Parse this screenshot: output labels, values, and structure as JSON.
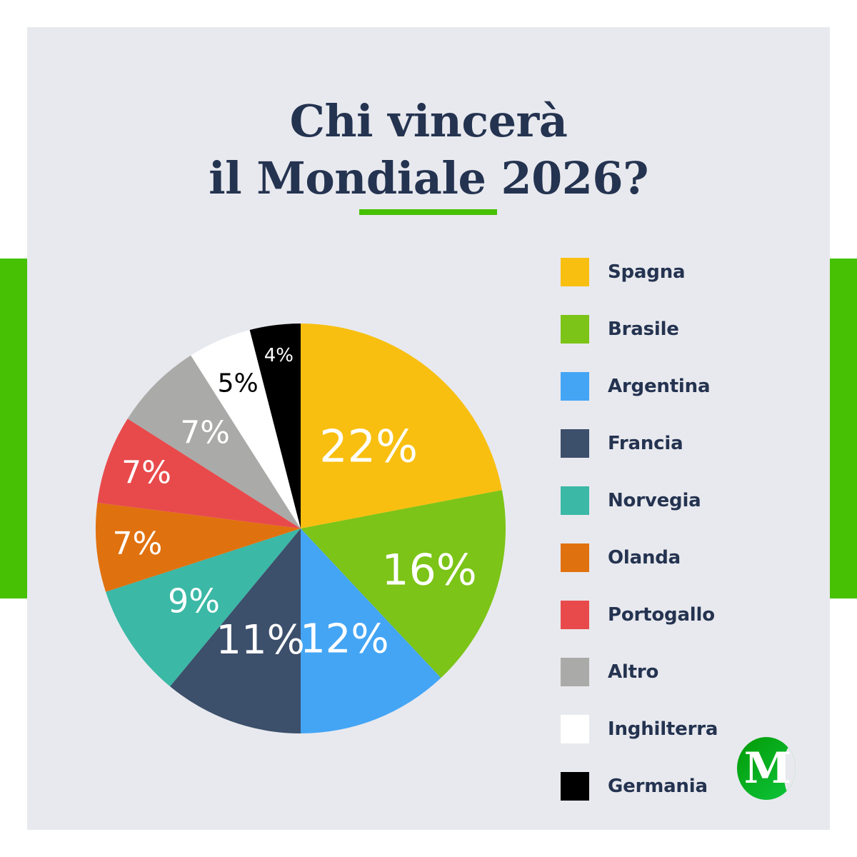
{
  "header": {
    "title_line1": "Chi vincerà",
    "title_line2": "il Mondiale 2026?"
  },
  "colors": {
    "background_panel": "#e8e9ee",
    "accent_green": "#46c103",
    "title_text": "#243350"
  },
  "logo": {
    "letter": "M",
    "icon": "brand-logo-m-icon"
  },
  "chart_data": {
    "type": "pie",
    "title": "Chi vincerà il Mondiale 2026?",
    "start_angle": "12 o'clock",
    "direction": "clockwise",
    "legend_position": "right",
    "slices": [
      {
        "label": "Spagna",
        "value": 22,
        "display": "22%",
        "color": "#f8bf10",
        "label_color": "#ffffff",
        "label_size": 62
      },
      {
        "label": "Brasile",
        "value": 16,
        "display": "16%",
        "color": "#7cc417",
        "label_color": "#ffffff",
        "label_size": 60
      },
      {
        "label": "Argentina",
        "value": 12,
        "display": "12%",
        "color": "#44a5f5",
        "label_color": "#ffffff",
        "label_size": 56
      },
      {
        "label": "Francia",
        "value": 11,
        "display": "11%",
        "color": "#3c4f6b",
        "label_color": "#ffffff",
        "label_size": 56
      },
      {
        "label": "Norvegia",
        "value": 9,
        "display": "9%",
        "color": "#3bb8a6",
        "label_color": "#ffffff",
        "label_size": 46
      },
      {
        "label": "Olanda",
        "value": 7,
        "display": "7%",
        "color": "#e0710f",
        "label_color": "#ffffff",
        "label_size": 44
      },
      {
        "label": "Portogallo",
        "value": 7,
        "display": "7%",
        "color": "#e84a4b",
        "label_color": "#ffffff",
        "label_size": 44
      },
      {
        "label": "Altro",
        "value": 7,
        "display": "7%",
        "color": "#aaaaa8",
        "label_color": "#ffffff",
        "label_size": 44
      },
      {
        "label": "Inghilterra",
        "value": 5,
        "display": "5%",
        "color": "#ffffff",
        "label_color": "#000000",
        "label_size": 36
      },
      {
        "label": "Germania",
        "value": 4,
        "display": "4%",
        "color": "#000000",
        "label_color": "#ffffff",
        "label_size": 26
      }
    ]
  }
}
